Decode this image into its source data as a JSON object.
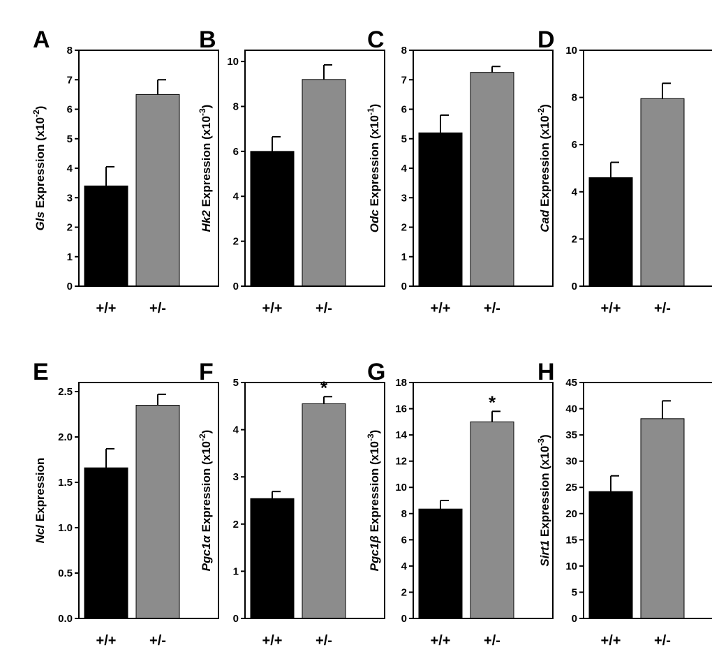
{
  "chart_data": [
    {
      "letter": "A",
      "type": "bar",
      "ylabel": {
        "gene": "Gls",
        "text": " Expression (x10",
        "exp": "-2",
        "close": ")"
      },
      "ylim": [
        0,
        8
      ],
      "ticks": [
        "0",
        "1",
        "2",
        "3",
        "4",
        "5",
        "6",
        "7",
        "8"
      ],
      "tick_values": [
        0,
        1,
        2,
        3,
        4,
        5,
        6,
        7,
        8
      ],
      "categories": [
        "+/+",
        "+/-"
      ],
      "values": [
        3.4,
        6.5
      ],
      "errors": [
        0.65,
        0.5
      ],
      "colors": [
        "#000000",
        "#8c8c8c"
      ],
      "significance": [
        "",
        ""
      ]
    },
    {
      "letter": "B",
      "type": "bar",
      "ylabel": {
        "gene": "Hk2",
        "text": " Expression (x10",
        "exp": "-3",
        "close": ")"
      },
      "ylim": [
        0,
        10.5
      ],
      "ticks": [
        "0",
        "2",
        "4",
        "6",
        "8",
        "10"
      ],
      "tick_values": [
        0,
        2,
        4,
        6,
        8,
        10
      ],
      "categories": [
        "+/+",
        "+/-"
      ],
      "values": [
        6.0,
        9.2
      ],
      "errors": [
        0.65,
        0.65
      ],
      "colors": [
        "#000000",
        "#8c8c8c"
      ],
      "significance": [
        "",
        ""
      ]
    },
    {
      "letter": "C",
      "type": "bar",
      "ylabel": {
        "gene": "Odc",
        "text": " Expression (x10",
        "exp": "-1",
        "close": ")"
      },
      "ylim": [
        0,
        8
      ],
      "ticks": [
        "0",
        "1",
        "2",
        "3",
        "4",
        "5",
        "6",
        "7",
        "8"
      ],
      "tick_values": [
        0,
        1,
        2,
        3,
        4,
        5,
        6,
        7,
        8
      ],
      "categories": [
        "+/+",
        "+/-"
      ],
      "values": [
        5.2,
        7.25
      ],
      "errors": [
        0.6,
        0.2
      ],
      "colors": [
        "#000000",
        "#8c8c8c"
      ],
      "significance": [
        "",
        ""
      ]
    },
    {
      "letter": "D",
      "type": "bar",
      "ylabel": {
        "gene": "Cad",
        "text": " Expression (x10",
        "exp": "-2",
        "close": ")"
      },
      "ylim": [
        0,
        10
      ],
      "ticks": [
        "0",
        "2",
        "4",
        "6",
        "8",
        "10"
      ],
      "tick_values": [
        0,
        2,
        4,
        6,
        8,
        10
      ],
      "categories": [
        "+/+",
        "+/-"
      ],
      "values": [
        4.6,
        7.95
      ],
      "errors": [
        0.65,
        0.65
      ],
      "colors": [
        "#000000",
        "#8c8c8c"
      ],
      "significance": [
        "",
        ""
      ]
    },
    {
      "letter": "E",
      "type": "bar",
      "ylabel": {
        "gene": "Ncl",
        "text": " Expression",
        "exp": "",
        "close": ""
      },
      "ylim": [
        0,
        2.6
      ],
      "ticks": [
        "0.0",
        "0.5",
        "1.0",
        "1.5",
        "2.0",
        "2.5"
      ],
      "tick_values": [
        0,
        0.5,
        1.0,
        1.5,
        2.0,
        2.5
      ],
      "categories": [
        "+/+",
        "+/-"
      ],
      "values": [
        1.66,
        2.35
      ],
      "errors": [
        0.21,
        0.12
      ],
      "colors": [
        "#000000",
        "#8c8c8c"
      ],
      "significance": [
        "",
        ""
      ]
    },
    {
      "letter": "F",
      "type": "bar",
      "ylabel": {
        "gene": "Pgc1α",
        "text": " Expression (x10",
        "exp": "-2",
        "close": ")"
      },
      "ylim": [
        0,
        5
      ],
      "ticks": [
        "0",
        "1",
        "2",
        "3",
        "4",
        "5"
      ],
      "tick_values": [
        0,
        1,
        2,
        3,
        4,
        5
      ],
      "categories": [
        "+/+",
        "+/-"
      ],
      "values": [
        2.54,
        4.55
      ],
      "errors": [
        0.15,
        0.15
      ],
      "colors": [
        "#000000",
        "#8c8c8c"
      ],
      "significance": [
        "",
        "*"
      ]
    },
    {
      "letter": "G",
      "type": "bar",
      "ylabel": {
        "gene": "Pgc1β",
        "text": " Expression (x10",
        "exp": "-3",
        "close": ")"
      },
      "ylim": [
        0,
        18
      ],
      "ticks": [
        "0",
        "2",
        "4",
        "6",
        "8",
        "10",
        "12",
        "14",
        "16",
        "18"
      ],
      "tick_values": [
        0,
        2,
        4,
        6,
        8,
        10,
        12,
        14,
        16,
        18
      ],
      "categories": [
        "+/+",
        "+/-"
      ],
      "values": [
        8.35,
        15.0
      ],
      "errors": [
        0.65,
        0.8
      ],
      "colors": [
        "#000000",
        "#8c8c8c"
      ],
      "significance": [
        "",
        "*"
      ]
    },
    {
      "letter": "H",
      "type": "bar",
      "ylabel": {
        "gene": "Sirt1",
        "text": " Expression (x10",
        "exp": "-3",
        "close": ")"
      },
      "ylim": [
        0,
        45
      ],
      "ticks": [
        "0",
        "5",
        "10",
        "15",
        "20",
        "25",
        "30",
        "35",
        "40",
        "45"
      ],
      "tick_values": [
        0,
        5,
        10,
        15,
        20,
        25,
        30,
        35,
        40,
        45
      ],
      "categories": [
        "+/+",
        "+/-"
      ],
      "values": [
        24.2,
        38.1
      ],
      "errors": [
        3.0,
        3.4
      ],
      "colors": [
        "#000000",
        "#8c8c8c"
      ],
      "significance": [
        "",
        ""
      ]
    }
  ]
}
